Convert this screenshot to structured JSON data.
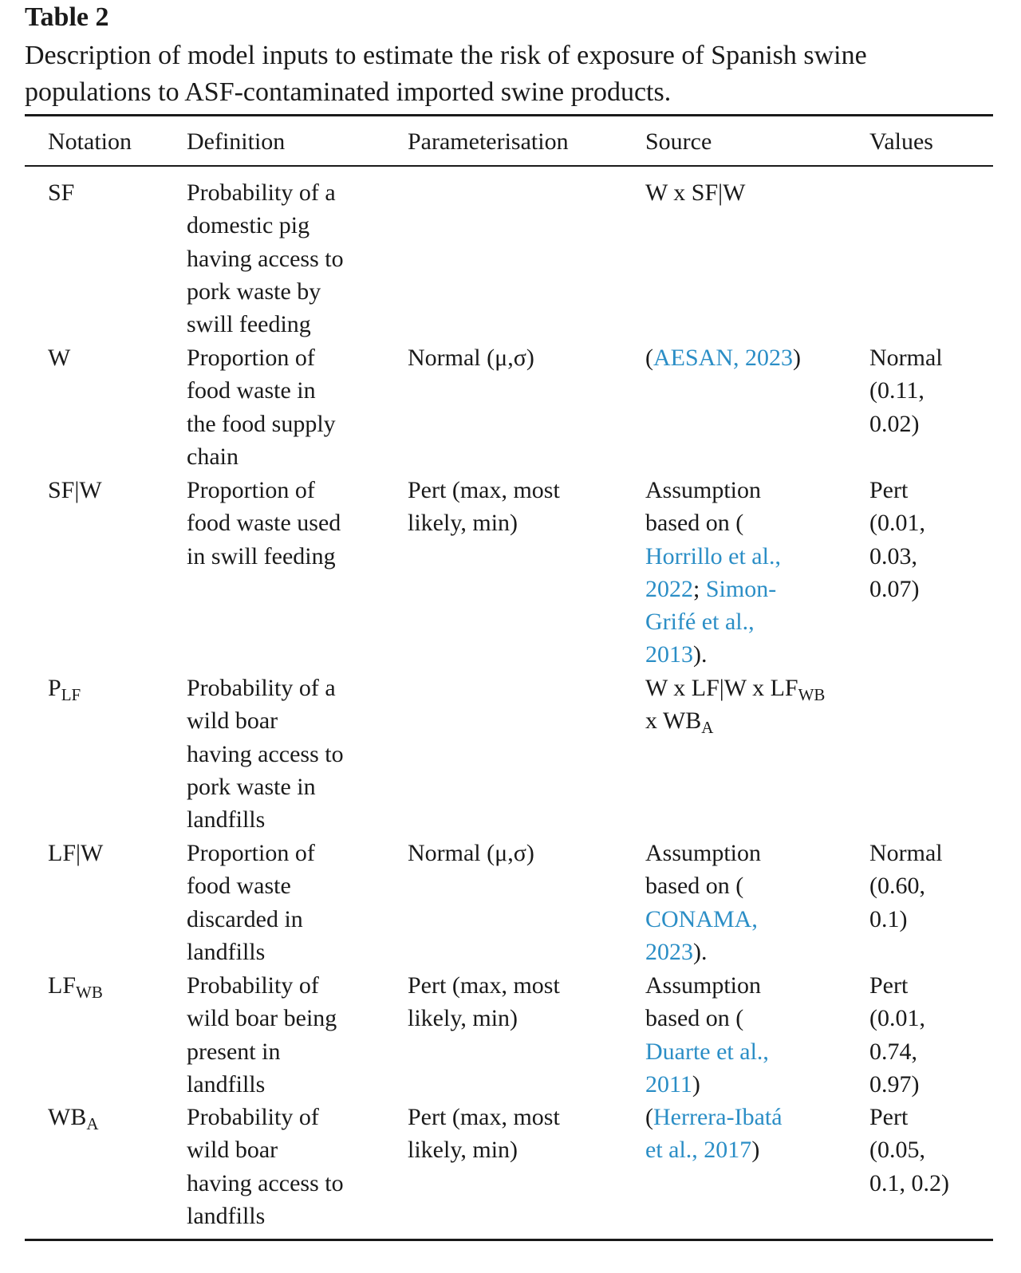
{
  "table_label": "Table 2",
  "caption": {
    "line1": "Description of model inputs to estimate the risk of exposure of Spanish swine",
    "line2": "populations to ASF-contaminated imported swine products."
  },
  "headers": {
    "notation": "Notation",
    "definition": "Definition",
    "parameterisation": "Parameterisation",
    "source": "Source",
    "values": "Values"
  },
  "rows": {
    "sf": {
      "notation": "SF",
      "definition": [
        "Probability of a",
        "domestic pig",
        "having access to",
        "pork waste by",
        "swill feeding"
      ],
      "parameterisation": [],
      "source": "W x SF|W",
      "values": []
    },
    "w": {
      "notation": "W",
      "definition": [
        "Proportion of",
        "food waste in",
        "the food supply",
        "chain"
      ],
      "parameterisation": [
        "Normal (μ,σ)"
      ],
      "source": {
        "open": "(",
        "ref": "AESAN, 2023",
        "close": ")"
      },
      "values": [
        "Normal",
        "(0.11,",
        "0.02)"
      ]
    },
    "sfw": {
      "notation": "SF|W",
      "definition": [
        "Proportion of",
        "food waste used",
        "in swill feeding"
      ],
      "parameterisation": [
        "Pert (max, most",
        "likely, min)"
      ],
      "source": {
        "l1": "Assumption",
        "l2": "based on (",
        "ref1_a": "Horrillo et al.,",
        "ref1_b": "2022",
        "sep": ";",
        "ref2_a": "Simon-",
        "ref2_b": "Grifé et al.,",
        "ref2_c": "2013",
        "close": ")."
      },
      "values": [
        "Pert",
        "(0.01,",
        "0.03,",
        "0.07)"
      ]
    },
    "plf": {
      "notation_main": "P",
      "notation_sub": "LF",
      "definition": [
        "Probability of a",
        "wild boar",
        "having access to",
        "pork waste in",
        "landfills"
      ],
      "parameterisation": [],
      "source": {
        "l1_main": "W x LF|W x LF",
        "l1_sub": "WB",
        "l2_main": "x WB",
        "l2_sub": "A"
      },
      "values": []
    },
    "lfw": {
      "notation": "LF|W",
      "definition": [
        "Proportion of",
        "food waste",
        "discarded in",
        "landfills"
      ],
      "parameterisation": [
        "Normal (μ,σ)"
      ],
      "source": {
        "l1": "Assumption",
        "l2": "based on (",
        "ref_a": "CONAMA,",
        "ref_b": "2023",
        "close": ")."
      },
      "values": [
        "Normal",
        "(0.60,",
        "0.1)"
      ]
    },
    "lfwb": {
      "notation_main": "LF",
      "notation_sub": "WB",
      "definition": [
        "Probability of",
        "wild boar being",
        "present in",
        "landfills"
      ],
      "parameterisation": [
        "Pert (max, most",
        "likely, min)"
      ],
      "source": {
        "l1": "Assumption",
        "l2": "based on (",
        "ref_a": "Duarte et al.,",
        "ref_b": "2011",
        "close": ")"
      },
      "values": [
        "Pert",
        "(0.01,",
        "0.74,",
        "0.97)"
      ]
    },
    "wba": {
      "notation_main": "WB",
      "notation_sub": "A",
      "definition": [
        "Probability of",
        "wild boar",
        "having access to",
        "landfills"
      ],
      "parameterisation": [
        "Pert (max, most",
        "likely, min)"
      ],
      "source": {
        "open": "(",
        "ref_a": "Herrera-Ibatá",
        "ref_b": "et al., 2017",
        "close": ")"
      },
      "values": [
        "Pert",
        "(0.05,",
        "0.1, 0.2)"
      ]
    }
  }
}
